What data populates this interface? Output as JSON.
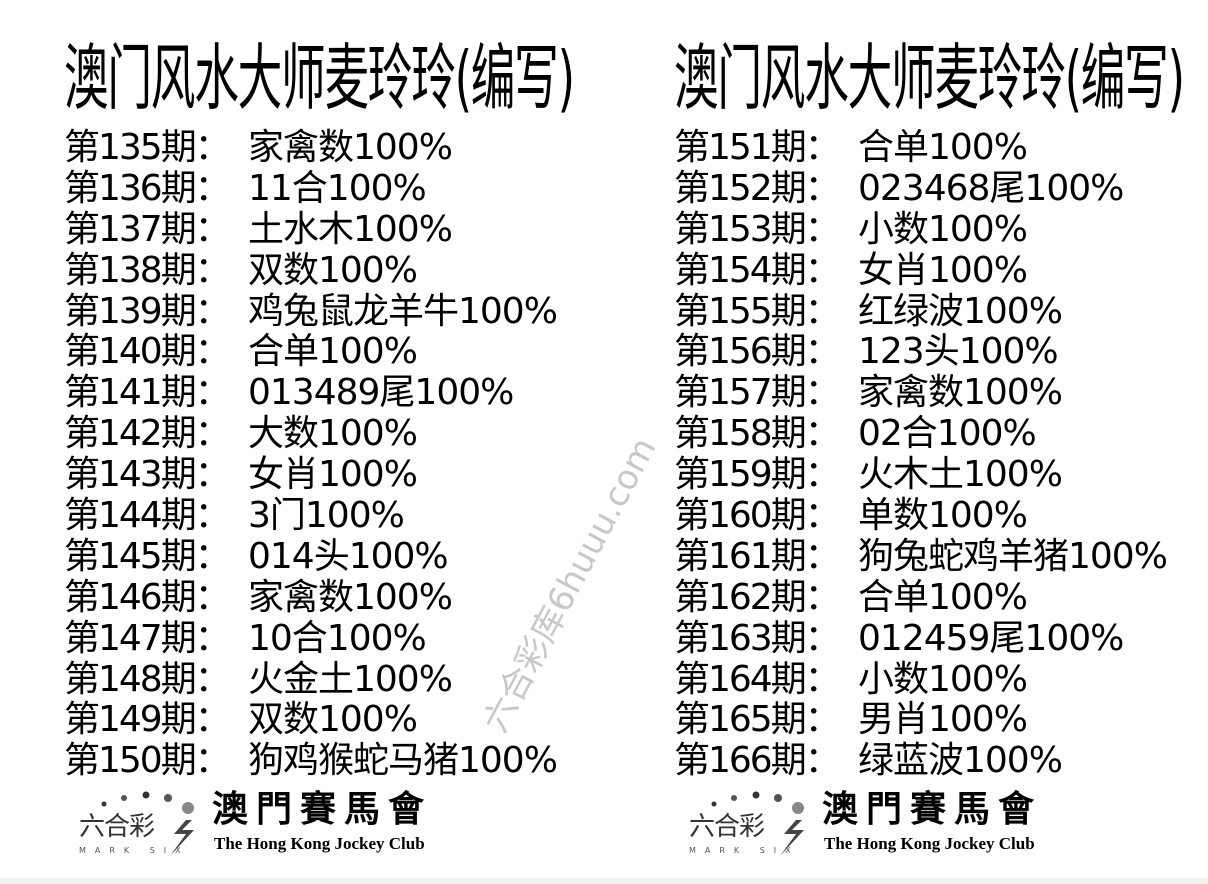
{
  "left": {
    "title": "澳门风水大师麦玲玲(编写)",
    "rows": [
      {
        "label": "第135期：",
        "value": "家禽数100%"
      },
      {
        "label": "第136期：",
        "value": "11合100%"
      },
      {
        "label": "第137期：",
        "value": "土水木100%"
      },
      {
        "label": "第138期：",
        "value": "双数100%"
      },
      {
        "label": "第139期：",
        "value": "鸡兔鼠龙羊牛100%"
      },
      {
        "label": "第140期：",
        "value": "合单100%"
      },
      {
        "label": "第141期：",
        "value": "013489尾100%"
      },
      {
        "label": "第142期：",
        "value": "大数100%"
      },
      {
        "label": "第143期：",
        "value": "女肖100%"
      },
      {
        "label": "第144期：",
        "value": "3门100%"
      },
      {
        "label": "第145期：",
        "value": "014头100%"
      },
      {
        "label": "第146期：",
        "value": "家禽数100%"
      },
      {
        "label": "第147期：",
        "value": "10合100%"
      },
      {
        "label": "第148期：",
        "value": "火金土100%"
      },
      {
        "label": "第149期：",
        "value": "双数100%"
      },
      {
        "label": "第150期：",
        "value": "狗鸡猴蛇马猪100%"
      }
    ]
  },
  "right": {
    "title": "澳门风水大师麦玲玲(编写)",
    "rows": [
      {
        "label": "第151期：",
        "value": "合单100%"
      },
      {
        "label": "第152期：",
        "value": "023468尾100%"
      },
      {
        "label": "第153期：",
        "value": "小数100%"
      },
      {
        "label": "第154期：",
        "value": "女肖100%"
      },
      {
        "label": "第155期：",
        "value": "红绿波100%"
      },
      {
        "label": "第156期：",
        "value": "123头100%"
      },
      {
        "label": "第157期：",
        "value": "家禽数100%"
      },
      {
        "label": "第158期：",
        "value": "02合100%"
      },
      {
        "label": "第159期：",
        "value": "火木土100%"
      },
      {
        "label": "第160期：",
        "value": "单数100%"
      },
      {
        "label": "第161期：",
        "value": "狗兔蛇鸡羊猪100%"
      },
      {
        "label": "第162期：",
        "value": "合单100%"
      },
      {
        "label": "第163期：",
        "value": "012459尾100%"
      },
      {
        "label": "第164期：",
        "value": "小数100%"
      },
      {
        "label": "第165期：",
        "value": "男肖100%"
      },
      {
        "label": "第166期：",
        "value": "绿蓝波100%"
      }
    ]
  },
  "logo": {
    "mark_six_cn": "六合彩",
    "mark_six_en": "MARK SIX",
    "club_cn": "澳門賽馬會",
    "club_en": "The Hong Kong Jockey Club"
  },
  "watermark": "六合彩库6huuu.com"
}
